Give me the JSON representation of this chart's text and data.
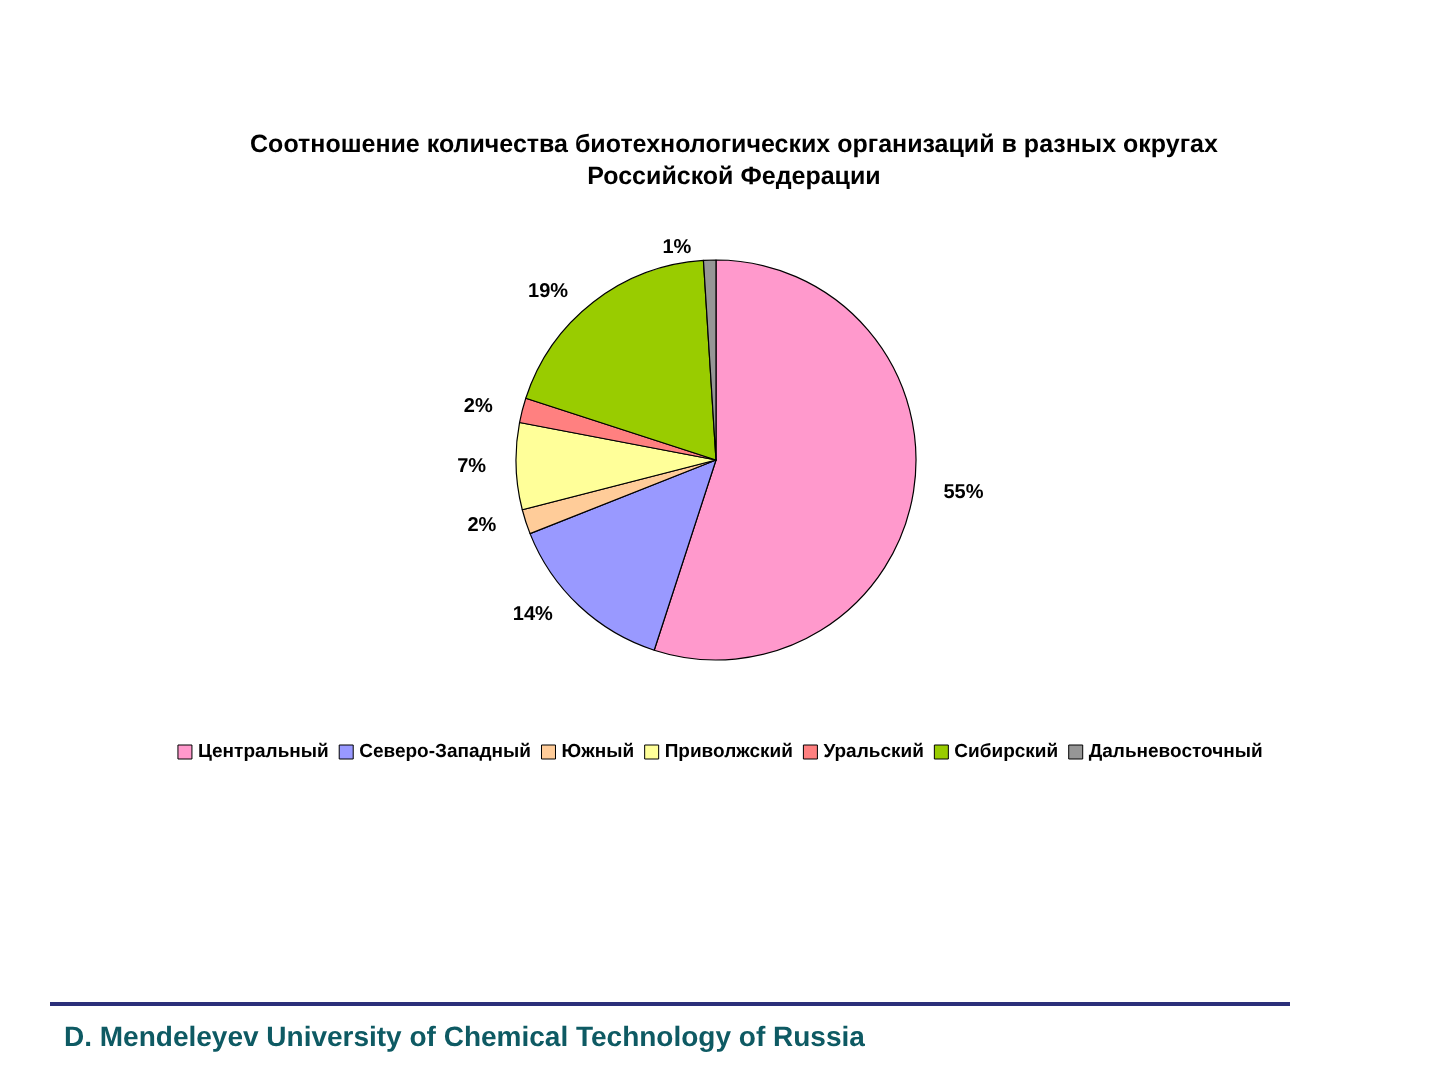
{
  "chart_data": {
    "type": "pie",
    "title": "Соотношение количества биотехнологических организаций в разных округах Российской Федерации",
    "categories": [
      "Центральный",
      "Северо-Западный",
      "Южный",
      "Приволжский",
      "Уральский",
      "Сибирский",
      "Дальневосточный"
    ],
    "values": [
      55,
      14,
      2,
      7,
      2,
      19,
      1
    ],
    "value_labels": [
      "55%",
      "14%",
      "2%",
      "7%",
      "2%",
      "19%",
      "1%"
    ],
    "colors": [
      "#ff99cc",
      "#9999ff",
      "#ffcc99",
      "#ffff99",
      "#ff8080",
      "#99cc00",
      "#969696"
    ],
    "legend": "bottom",
    "annotations": [
      "D. Mendeleyev University of Chemical Technology of Russia"
    ]
  }
}
